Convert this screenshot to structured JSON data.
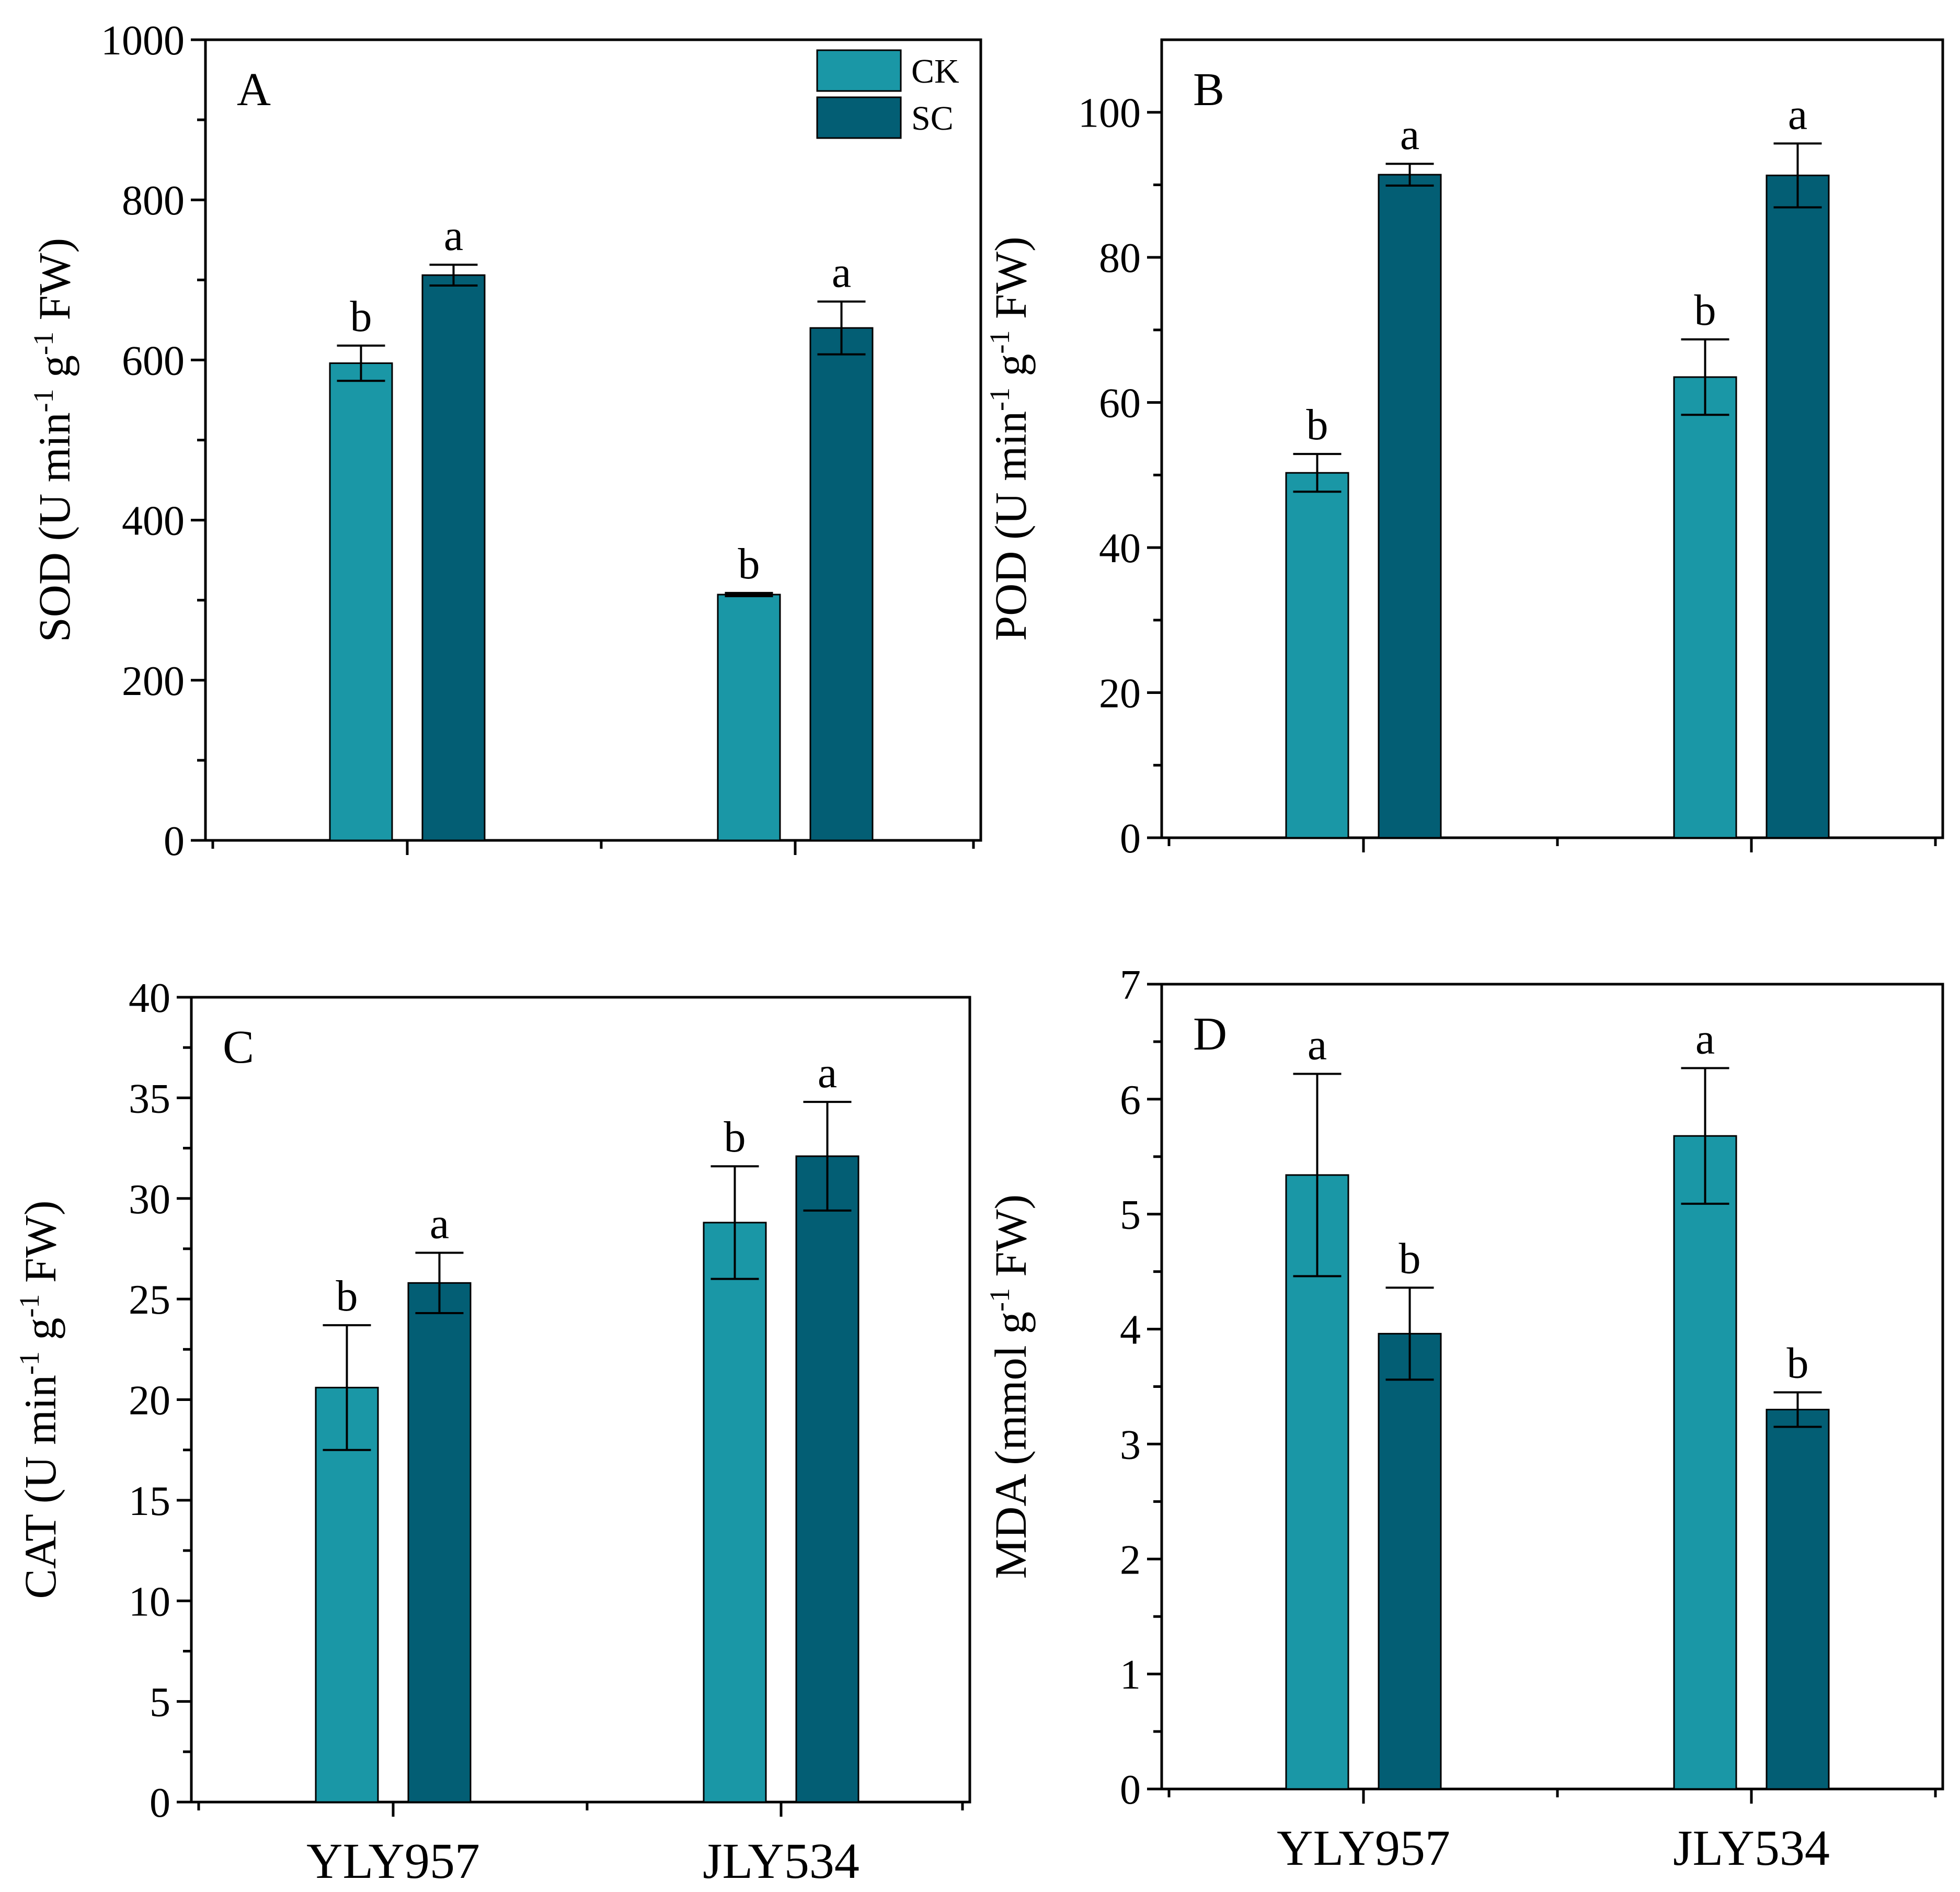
{
  "colors": {
    "CK": "#1a97a6",
    "SC": "#035e74"
  },
  "chart_data": [
    {
      "type": "bar",
      "panel": "A",
      "ylabel": {
        "main": "SOD (U min",
        "sup1": "-1",
        "mid": " g",
        "sup2": "-1",
        "end": " FW)"
      },
      "ylim": [
        0,
        1000
      ],
      "yticks": [
        0,
        200,
        400,
        600,
        800,
        1000
      ],
      "ytick_labels": [
        "0",
        "200",
        "400",
        "600",
        "800",
        "1000"
      ],
      "categories": [
        "YLY957",
        "JLY534"
      ],
      "show_category_labels": false,
      "legend": {
        "show": true,
        "placement": "top-right",
        "entries": [
          "CK",
          "SC"
        ]
      },
      "series": [
        {
          "name": "CK",
          "values": [
            596,
            307
          ],
          "errors": [
            22,
            2
          ],
          "letters": [
            "b",
            "b"
          ]
        },
        {
          "name": "SC",
          "values": [
            706,
            640
          ],
          "errors": [
            13,
            33
          ],
          "letters": [
            "a",
            "a"
          ]
        }
      ]
    },
    {
      "type": "bar",
      "panel": "B",
      "ylabel": {
        "main": "POD (U min",
        "sup1": "-1",
        "mid": " g",
        "sup2": "-1",
        "end": " FW)"
      },
      "ylim": [
        0,
        110
      ],
      "yticks": [
        0,
        20,
        40,
        60,
        80,
        100
      ],
      "ytick_labels": [
        "0",
        "20",
        "40",
        "60",
        "80",
        "100"
      ],
      "categories": [
        "YLY957",
        "JLY534"
      ],
      "show_category_labels": false,
      "legend": {
        "show": false
      },
      "series": [
        {
          "name": "CK",
          "values": [
            50.3,
            63.5
          ],
          "errors": [
            2.6,
            5.2
          ],
          "letters": [
            "b",
            "b"
          ]
        },
        {
          "name": "SC",
          "values": [
            91.4,
            91.3
          ],
          "errors": [
            1.5,
            4.4
          ],
          "letters": [
            "a",
            "a"
          ]
        }
      ]
    },
    {
      "type": "bar",
      "panel": "C",
      "ylabel": {
        "main": "CAT (U min",
        "sup1": "-1",
        "mid": " g",
        "sup2": "-1",
        "end": " FW)"
      },
      "ylim": [
        0,
        40
      ],
      "yticks": [
        0,
        5,
        10,
        15,
        20,
        25,
        30,
        35,
        40
      ],
      "ytick_labels": [
        "0",
        "5",
        "10",
        "15",
        "20",
        "25",
        "30",
        "35",
        "40"
      ],
      "categories": [
        "YLY957",
        "JLY534"
      ],
      "show_category_labels": true,
      "legend": {
        "show": false
      },
      "series": [
        {
          "name": "CK",
          "values": [
            20.6,
            28.8
          ],
          "errors": [
            3.1,
            2.8
          ],
          "letters": [
            "b",
            "b"
          ]
        },
        {
          "name": "SC",
          "values": [
            25.8,
            32.1
          ],
          "errors": [
            1.5,
            2.7
          ],
          "letters": [
            "a",
            "a"
          ]
        }
      ]
    },
    {
      "type": "bar",
      "panel": "D",
      "ylabel": {
        "main": "MDA (mmol g",
        "sup1": "-1",
        "mid": "",
        "sup2": "",
        "end": " FW)"
      },
      "ylim": [
        0,
        7
      ],
      "yticks": [
        0,
        1,
        2,
        3,
        4,
        5,
        6,
        7
      ],
      "ytick_labels": [
        "0",
        "1",
        "2",
        "3",
        "4",
        "5",
        "6",
        "7"
      ],
      "categories": [
        "YLY957",
        "JLY534"
      ],
      "show_category_labels": true,
      "legend": {
        "show": false
      },
      "series": [
        {
          "name": "CK",
          "values": [
            5.34,
            5.68
          ],
          "errors": [
            0.88,
            0.59
          ],
          "letters": [
            "a",
            "a"
          ]
        },
        {
          "name": "SC",
          "values": [
            3.96,
            3.3
          ],
          "errors": [
            0.4,
            0.15
          ],
          "letters": [
            "b",
            "b"
          ]
        }
      ]
    }
  ]
}
